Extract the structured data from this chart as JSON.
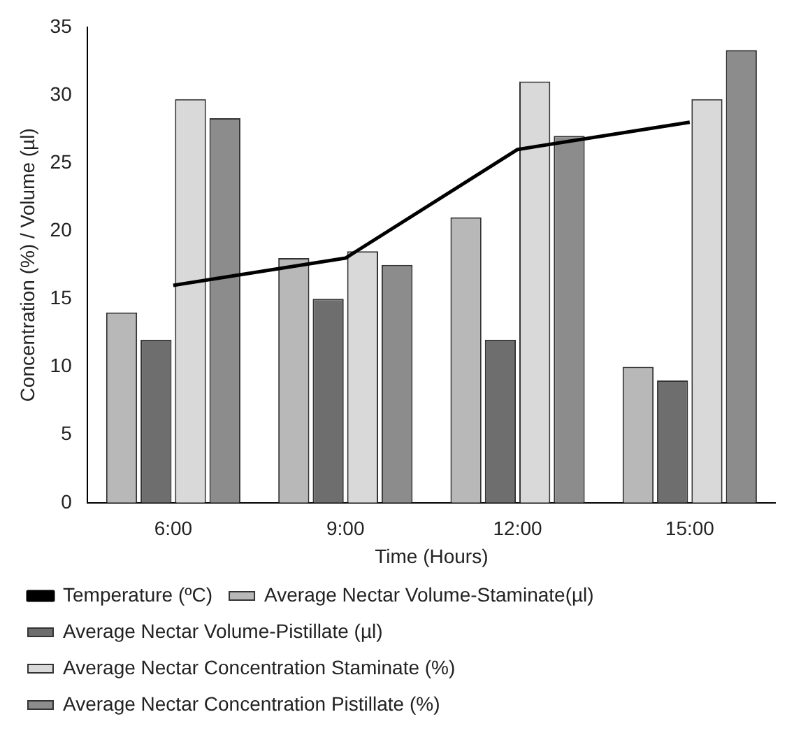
{
  "chart_data": {
    "type": "bar",
    "xlabel": "Time (Hours)",
    "ylabel": "Concentration (%) / Volume (µl)",
    "categories": [
      "6:00",
      "9:00",
      "12:00",
      "15:00"
    ],
    "series": [
      {
        "name": "Average Nectar Volume-Staminate(µl)",
        "color": "#b8b8b8",
        "values": [
          14,
          18,
          21,
          10
        ]
      },
      {
        "name": "Average Nectar Volume-Pistillate (µl)",
        "color": "#6e6e6e",
        "values": [
          12,
          15,
          12,
          9
        ]
      },
      {
        "name": "Average Nectar Concentration Staminate (%)",
        "color": "#d9d9d9",
        "values": [
          29.7,
          18.5,
          31,
          29.7
        ]
      },
      {
        "name": "Average Nectar Concentration Pistillate (%)",
        "color": "#8c8c8c",
        "values": [
          28.3,
          17.5,
          27,
          33.3
        ]
      },
      {
        "name": "Temperature (ºC)",
        "type": "line",
        "color": "#000000",
        "values": [
          16,
          18,
          26,
          28
        ]
      }
    ],
    "ylim": [
      0,
      35
    ],
    "yticks": [
      0,
      5,
      10,
      15,
      20,
      25,
      30,
      35
    ],
    "grid": false,
    "legend": "bottom",
    "marker": "none",
    "line_style": "solid"
  }
}
